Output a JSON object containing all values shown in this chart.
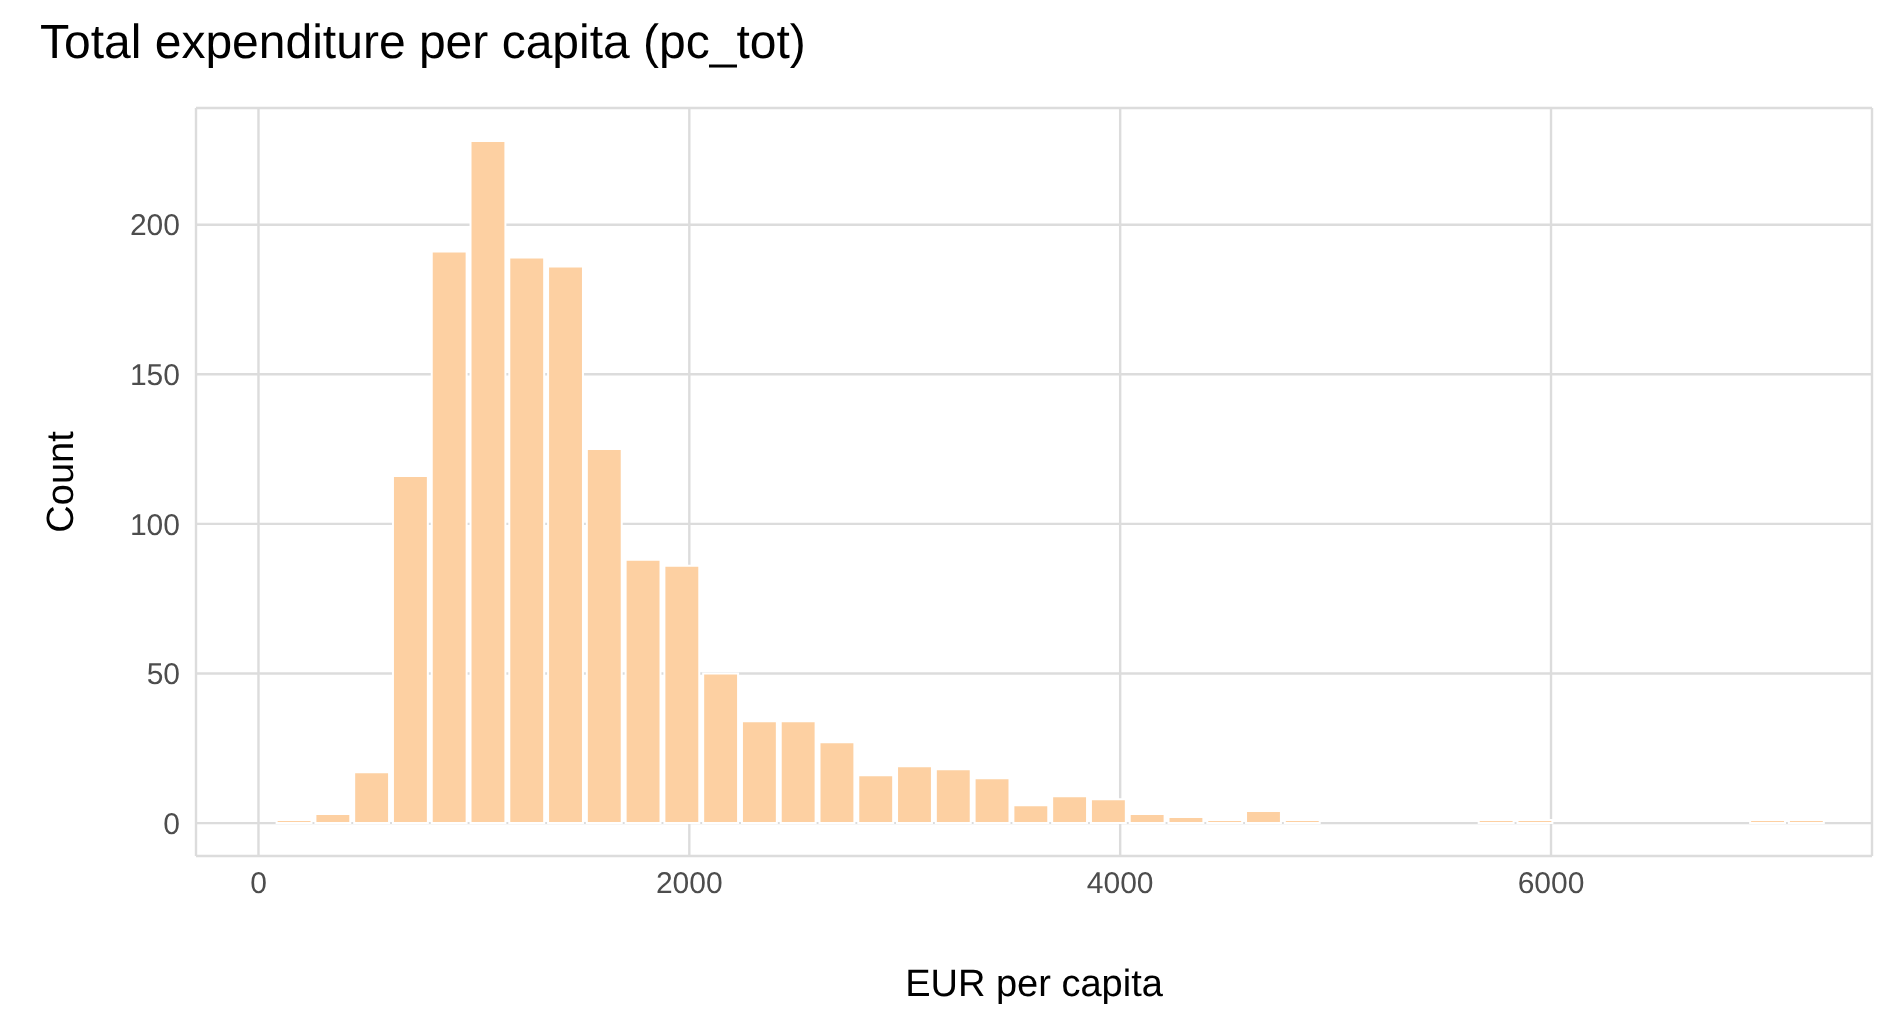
{
  "chart_data": {
    "type": "histogram",
    "title": "Total expenditure per capita (pc_tot)",
    "xlabel": "EUR per capita",
    "ylabel": "Count",
    "bins": [
      75,
      255,
      435,
      615,
      795,
      975,
      1155,
      1335,
      1515,
      1695,
      1875,
      2055,
      2235,
      2415,
      2595,
      2775,
      2955,
      3135,
      3315,
      3495,
      3675,
      3855,
      4035,
      4215,
      4395,
      4575,
      4755,
      4935,
      5115,
      5295,
      5475,
      5655,
      5835,
      6015,
      6195,
      6375,
      6555,
      6735,
      6915,
      7095,
      7275,
      7455
    ],
    "values": [
      1,
      3,
      17,
      116,
      191,
      228,
      189,
      186,
      125,
      88,
      86,
      50,
      34,
      34,
      27,
      16,
      19,
      18,
      15,
      6,
      9,
      8,
      3,
      2,
      1,
      4,
      1,
      0,
      0,
      0,
      0,
      1,
      1,
      0,
      0,
      0,
      0,
      0,
      1,
      1,
      0
    ],
    "color": "#fdd0a2",
    "xlim": [
      -290,
      7490
    ],
    "xticks": [
      0,
      2000,
      4000,
      6000
    ],
    "ylim": [
      -11,
      239
    ],
    "yticks": [
      0,
      50,
      100,
      150,
      200
    ],
    "grid": true
  }
}
